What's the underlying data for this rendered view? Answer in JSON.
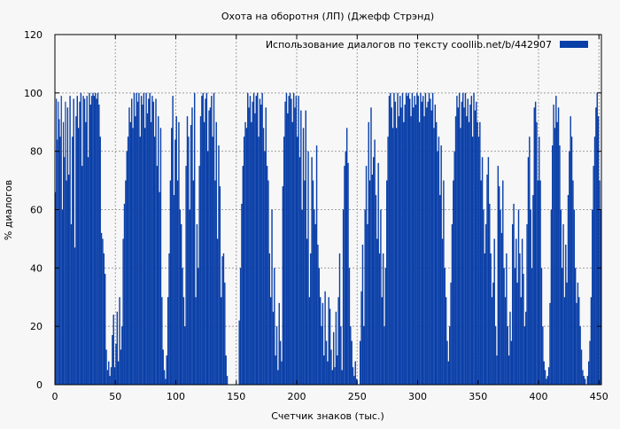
{
  "chart_data": {
    "type": "bar",
    "title": "Охота на оборотня (ЛП) (Джефф Стрэнд)",
    "xlabel": "Счетчик знаков (тыс.)",
    "ylabel": "% диалогов",
    "xlim": [
      0,
      452
    ],
    "ylim": [
      0,
      120
    ],
    "xticks": [
      0,
      50,
      100,
      150,
      200,
      250,
      300,
      350,
      400,
      450
    ],
    "yticks": [
      0,
      20,
      40,
      60,
      80,
      100,
      120
    ],
    "grid": true,
    "legend_position": "top-right",
    "series": [
      {
        "name": "Использование диалогов по тексту  coollib.net/b/442907",
        "color": "#0a3fa8",
        "segments": [
          {
            "x0": 0,
            "x1": 4,
            "values": [
              66,
              98,
              84,
              97,
              91
            ]
          },
          {
            "x0": 4,
            "x1": 10,
            "values": [
              85,
              99,
              60,
              90,
              78,
              97,
              70
            ]
          },
          {
            "x0": 10,
            "x1": 18,
            "values": [
              95,
              72,
              99,
              55,
              85,
              98,
              47,
              92
            ]
          },
          {
            "x0": 18,
            "x1": 26,
            "values": [
              99,
              88,
              97,
              100,
              75,
              99,
              98,
              90
            ]
          },
          {
            "x0": 26,
            "x1": 32,
            "values": [
              99,
              78,
              100,
              96,
              99,
              100
            ]
          },
          {
            "x0": 32,
            "x1": 38,
            "values": [
              99,
              100,
              98,
              100,
              96,
              85
            ]
          },
          {
            "x0": 38,
            "x1": 43,
            "values": [
              52,
              50,
              45,
              38,
              12
            ]
          },
          {
            "x0": 43,
            "x1": 47,
            "values": [
              5,
              8,
              3,
              6
            ]
          },
          {
            "x0": 47,
            "x1": 52,
            "values": [
              17,
              24,
              6,
              14,
              25
            ]
          },
          {
            "x0": 52,
            "x1": 56,
            "values": [
              8,
              30,
              12,
              20
            ]
          },
          {
            "x0": 56,
            "x1": 60,
            "values": [
              50,
              62,
              70,
              80
            ]
          },
          {
            "x0": 60,
            "x1": 66,
            "values": [
              85,
              95,
              90,
              98,
              88,
              100
            ]
          },
          {
            "x0": 66,
            "x1": 74,
            "values": [
              92,
              100,
              97,
              100,
              85,
              99,
              96,
              100
            ]
          },
          {
            "x0": 74,
            "x1": 82,
            "values": [
              88,
              100,
              93,
              98,
              100,
              90,
              99,
              97
            ]
          },
          {
            "x0": 82,
            "x1": 88,
            "values": [
              85,
              98,
              75,
              92,
              66,
              88
            ]
          },
          {
            "x0": 88,
            "x1": 92,
            "values": [
              30,
              12,
              5,
              2
            ]
          },
          {
            "x0": 92,
            "x1": 96,
            "values": [
              10,
              30,
              45,
              70
            ]
          },
          {
            "x0": 96,
            "x1": 100,
            "values": [
              88,
              99,
              65,
              84
            ]
          },
          {
            "x0": 100,
            "x1": 104,
            "values": [
              92,
              70,
              90,
              60
            ]
          },
          {
            "x0": 104,
            "x1": 108,
            "values": [
              55,
              40,
              30,
              20
            ]
          },
          {
            "x0": 108,
            "x1": 112,
            "values": [
              75,
              92,
              85,
              60
            ]
          },
          {
            "x0": 112,
            "x1": 116,
            "values": [
              89,
              95,
              70,
              100
            ]
          },
          {
            "x0": 116,
            "x1": 122,
            "values": [
              30,
              55,
              40,
              75,
              92,
              99
            ]
          },
          {
            "x0": 122,
            "x1": 128,
            "values": [
              100,
              90,
              98,
              100,
              80,
              94
            ]
          },
          {
            "x0": 128,
            "x1": 134,
            "values": [
              95,
              99,
              85,
              100,
              70,
              90
            ]
          },
          {
            "x0": 134,
            "x1": 138,
            "values": [
              50,
              82,
              68,
              30
            ]
          },
          {
            "x0": 138,
            "x1": 142,
            "values": [
              44,
              45,
              35,
              10
            ]
          },
          {
            "x0": 142,
            "x1": 152,
            "values": [
              3,
              0,
              0,
              0,
              0,
              0,
              0,
              0,
              0,
              0
            ]
          },
          {
            "x0": 152,
            "x1": 158,
            "values": [
              22,
              40,
              62,
              75,
              85,
              90
            ]
          },
          {
            "x0": 158,
            "x1": 164,
            "values": [
              88,
              100,
              95,
              99,
              90,
              97
            ]
          },
          {
            "x0": 164,
            "x1": 170,
            "values": [
              100,
              93,
              99,
              100,
              85,
              98
            ]
          },
          {
            "x0": 170,
            "x1": 176,
            "values": [
              96,
              100,
              88,
              80,
              95,
              75
            ]
          },
          {
            "x0": 176,
            "x1": 182,
            "values": [
              70,
              45,
              30,
              60,
              25,
              40
            ]
          },
          {
            "x0": 182,
            "x1": 188,
            "values": [
              10,
              20,
              5,
              28,
              15,
              8
            ]
          },
          {
            "x0": 188,
            "x1": 194,
            "values": [
              68,
              85,
              97,
              100,
              93,
              99
            ]
          },
          {
            "x0": 194,
            "x1": 200,
            "values": [
              100,
              98,
              90,
              100,
              95,
              99
            ]
          },
          {
            "x0": 200,
            "x1": 206,
            "values": [
              85,
              99,
              78,
              94,
              60,
              88
            ]
          },
          {
            "x0": 206,
            "x1": 212,
            "values": [
              70,
              94,
              50,
              80,
              30,
              45
            ]
          },
          {
            "x0": 212,
            "x1": 220,
            "values": [
              78,
              70,
              60,
              55,
              82,
              48,
              40,
              30
            ]
          },
          {
            "x0": 220,
            "x1": 226,
            "values": [
              20,
              28,
              10,
              32,
              15,
              8
            ]
          },
          {
            "x0": 226,
            "x1": 232,
            "values": [
              30,
              26,
              12,
              5,
              18,
              6
            ]
          },
          {
            "x0": 232,
            "x1": 238,
            "values": [
              25,
              10,
              30,
              45,
              20,
              5
            ]
          },
          {
            "x0": 238,
            "x1": 244,
            "values": [
              60,
              75,
              80,
              88,
              76,
              40
            ]
          },
          {
            "x0": 244,
            "x1": 248,
            "values": [
              20,
              15,
              6,
              3
            ]
          },
          {
            "x0": 248,
            "x1": 252,
            "values": [
              8,
              2,
              0,
              0
            ]
          },
          {
            "x0": 252,
            "x1": 256,
            "values": [
              15,
              32,
              48,
              20
            ]
          },
          {
            "x0": 256,
            "x1": 262,
            "values": [
              60,
              75,
              55,
              90,
              70,
              95
            ]
          },
          {
            "x0": 262,
            "x1": 268,
            "values": [
              72,
              78,
              84,
              65,
              50,
              76
            ]
          },
          {
            "x0": 268,
            "x1": 274,
            "values": [
              45,
              60,
              30,
              45,
              20,
              40
            ]
          },
          {
            "x0": 274,
            "x1": 280,
            "values": [
              70,
              85,
              99,
              100,
              95,
              88
            ]
          },
          {
            "x0": 280,
            "x1": 286,
            "values": [
              100,
              97,
              88,
              100,
              92,
              99
            ]
          },
          {
            "x0": 286,
            "x1": 292,
            "values": [
              95,
              100,
              90,
              96,
              100,
              99
            ]
          },
          {
            "x0": 292,
            "x1": 298,
            "values": [
              100,
              98,
              92,
              100,
              95,
              99
            ]
          },
          {
            "x0": 298,
            "x1": 304,
            "values": [
              96,
              100,
              99,
              90,
              100,
              97
            ]
          },
          {
            "x0": 304,
            "x1": 310,
            "values": [
              99,
              92,
              100,
              95,
              97,
              100
            ]
          },
          {
            "x0": 310,
            "x1": 316,
            "values": [
              98,
              94,
              100,
              88,
              96,
              90
            ]
          },
          {
            "x0": 316,
            "x1": 322,
            "values": [
              80,
              85,
              65,
              82,
              50,
              70
            ]
          },
          {
            "x0": 322,
            "x1": 326,
            "values": [
              40,
              30,
              15,
              8
            ]
          },
          {
            "x0": 326,
            "x1": 332,
            "values": [
              20,
              35,
              55,
              70,
              80,
              92
            ]
          },
          {
            "x0": 332,
            "x1": 338,
            "values": [
              99,
              95,
              100,
              88,
              97,
              100
            ]
          },
          {
            "x0": 338,
            "x1": 344,
            "values": [
              95,
              100,
              92,
              98,
              90,
              96
            ]
          },
          {
            "x0": 344,
            "x1": 350,
            "values": [
              99,
              85,
              100,
              94,
              97,
              90
            ]
          },
          {
            "x0": 350,
            "x1": 356,
            "values": [
              85,
              90,
              70,
              78,
              60,
              45
            ]
          },
          {
            "x0": 356,
            "x1": 362,
            "values": [
              55,
              72,
              78,
              62,
              45,
              30
            ]
          },
          {
            "x0": 362,
            "x1": 366,
            "values": [
              35,
              50,
              20,
              10
            ]
          },
          {
            "x0": 366,
            "x1": 372,
            "values": [
              75,
              68,
              60,
              52,
              70,
              40
            ]
          },
          {
            "x0": 372,
            "x1": 378,
            "values": [
              30,
              45,
              20,
              10,
              25,
              15
            ]
          },
          {
            "x0": 378,
            "x1": 384,
            "values": [
              55,
              62,
              40,
              50,
              35,
              60
            ]
          },
          {
            "x0": 384,
            "x1": 390,
            "values": [
              45,
              30,
              50,
              38,
              20,
              25
            ]
          },
          {
            "x0": 390,
            "x1": 396,
            "values": [
              55,
              78,
              85,
              60,
              40,
              65
            ]
          },
          {
            "x0": 396,
            "x1": 400,
            "values": [
              95,
              97,
              90,
              70
            ]
          },
          {
            "x0": 400,
            "x1": 404,
            "values": [
              85,
              70,
              40,
              20
            ]
          },
          {
            "x0": 404,
            "x1": 408,
            "values": [
              8,
              5,
              2,
              3
            ]
          },
          {
            "x0": 408,
            "x1": 412,
            "values": [
              6,
              28,
              60,
              82
            ]
          },
          {
            "x0": 412,
            "x1": 418,
            "values": [
              96,
              88,
              99,
              90,
              95,
              82
            ]
          },
          {
            "x0": 418,
            "x1": 424,
            "values": [
              60,
              40,
              55,
              30,
              48,
              35
            ]
          },
          {
            "x0": 424,
            "x1": 430,
            "values": [
              65,
              80,
              92,
              85,
              70,
              60
            ]
          },
          {
            "x0": 430,
            "x1": 436,
            "values": [
              40,
              28,
              35,
              30,
              20,
              12
            ]
          },
          {
            "x0": 436,
            "x1": 440,
            "values": [
              5,
              3,
              2,
              0
            ]
          },
          {
            "x0": 440,
            "x1": 444,
            "values": [
              3,
              8,
              15,
              30
            ]
          },
          {
            "x0": 444,
            "x1": 448,
            "values": [
              60,
              75,
              85,
              95
            ]
          },
          {
            "x0": 448,
            "x1": 452,
            "values": [
              100,
              92,
              70,
              60
            ]
          }
        ]
      }
    ]
  }
}
